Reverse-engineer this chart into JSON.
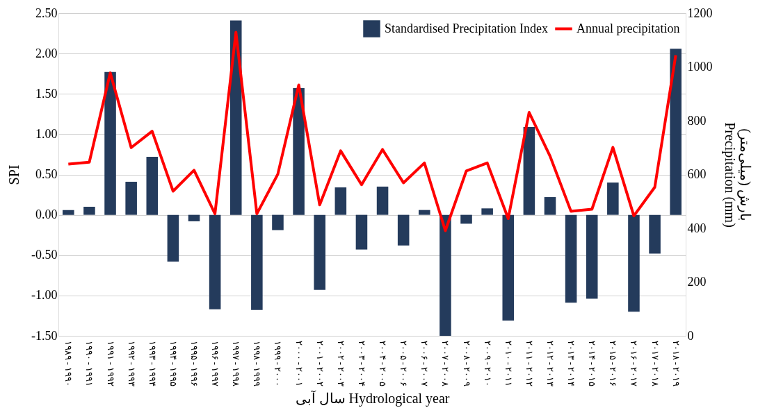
{
  "chart_data": {
    "type": "bar",
    "categories": [
      "۱۹۸۹ - ۱۹۹۰",
      "۱۹۹۰ - ۱۹۹۱",
      "۱۹۹۱ - ۱۹۹۲",
      "۱۹۹۲ - ۱۹۹۳",
      "۱۹۹۳ - ۱۹۹۴",
      "۱۹۹۴ - ۱۹۹۵",
      "۱۹۹۵ - ۱۹۹۶",
      "۱۹۹۶ - ۱۹۹۷",
      "۱۹۹۷ - ۱۹۹۸",
      "۱۹۹۸ - ۱۹۹۹",
      "۱۹۹۹ - ۲۰۰۰",
      "۲۰۰۰ - ۲۰۰۱",
      "۲۰۰۱ - ۲۰۰۲",
      "۲۰۰۲ - ۲۰۰۳",
      "۲۰۰۳ - ۲۰۰۴",
      "۲۰۰۴ - ۲۰۰۵",
      "۲۰۰۵ - ۲۰۰۶",
      "۲۰۰۶ - ۲۰۰۷",
      "۲۰۰۷ - ۲۰۰۸",
      "۲۰۰۸ - ۲۰۰۹",
      "۲۰۰۹ - ۲۰۱۰",
      "۲۰۱۰ - ۲۰۱۱",
      "۲۰۱۱ - ۲۰۱۲",
      "۲۰۱۲ - ۲۰۱۳",
      "۲۰۱۳ - ۲۰۱۴",
      "۲۰۱۴ - ۲۰۱۵",
      "۲۰۱۵ - ۲۰۱۶",
      "۲۰۱۶ - ۲۰۱۷",
      "۲۰۱۷ - ۲۰۱۸",
      "۲۰۱۸ - ۲۰۱۹"
    ],
    "xlabel": "سال آبی Hydrological year",
    "ylabel": "SPI",
    "y2label": "بارش (میلی‌متر)\nPrecipitation (mm)",
    "series": [
      {
        "name": "Standardised Precipitation Index",
        "color": "#243b5c",
        "values": [
          0.06,
          0.1,
          1.77,
          0.41,
          0.72,
          -0.58,
          -0.08,
          -1.17,
          2.41,
          -1.18,
          -0.19,
          1.57,
          -0.93,
          0.34,
          -0.43,
          0.35,
          -0.38,
          0.06,
          -1.5,
          -0.11,
          0.08,
          -1.31,
          1.09,
          0.22,
          -1.09,
          -1.04,
          0.4,
          -1.2,
          -0.48,
          2.06
        ]
      },
      {
        "name": "Annual precipitation",
        "color": "#ff0000",
        "type": "line",
        "axis": "y2",
        "values": [
          639,
          646,
          978,
          700,
          761,
          538,
          616,
          454,
          1129,
          454,
          601,
          933,
          487,
          688,
          562,
          693,
          569,
          643,
          391,
          613,
          643,
          436,
          831,
          668,
          463,
          471,
          701,
          446,
          553,
          1044
        ]
      }
    ],
    "ylim": [
      -1.5,
      2.5
    ],
    "yticks": [
      {
        "value": -1.5,
        "label": "-1.50"
      },
      {
        "value": -1.0,
        "label": "-1.00"
      },
      {
        "value": -0.5,
        "label": "-0.50"
      },
      {
        "value": 0,
        "label": "0.00"
      },
      {
        "value": 0.5,
        "label": "0.50"
      },
      {
        "value": 1.0,
        "label": "1.00"
      },
      {
        "value": 1.5,
        "label": "1.50"
      },
      {
        "value": 2.0,
        "label": "2.00"
      },
      {
        "value": 2.5,
        "label": "2.50"
      }
    ],
    "y2lim": [
      0,
      1200
    ],
    "y2ticks": [
      0,
      200,
      400,
      600,
      800,
      1000,
      1200
    ],
    "grid": "y",
    "legend": "top right",
    "marker": "none",
    "line_style": "solid"
  }
}
